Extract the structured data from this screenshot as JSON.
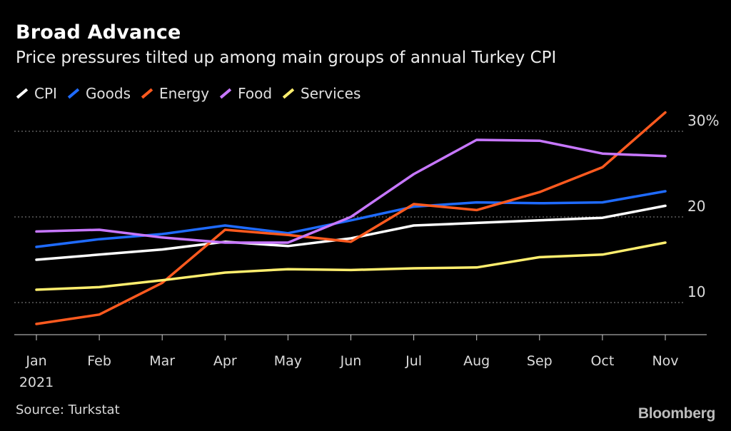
{
  "header": {
    "title": "Broad Advance",
    "subtitle": "Price pressures tilted up among main groups of annual Turkey CPI"
  },
  "footer": {
    "source": "Source: Turkstat",
    "brand": "Bloomberg"
  },
  "chart_data": {
    "type": "line",
    "categories": [
      "Jan",
      "Feb",
      "Mar",
      "Apr",
      "May",
      "Jun",
      "Jul",
      "Aug",
      "Sep",
      "Oct",
      "Nov"
    ],
    "year_label": "2021",
    "ylim": [
      6.5,
      32.5
    ],
    "yticks": [
      10,
      20,
      30
    ],
    "ytick_labels": [
      "10",
      "20",
      "30%"
    ],
    "grid": "horizontal dotted",
    "legend": "top-left",
    "series": [
      {
        "name": "CPI",
        "color": "#ffffff",
        "values": [
          15.0,
          15.6,
          16.2,
          17.1,
          16.6,
          17.5,
          19.0,
          19.3,
          19.6,
          19.9,
          21.3
        ]
      },
      {
        "name": "Goods",
        "color": "#1f6bff",
        "values": [
          16.5,
          17.4,
          18.0,
          19.0,
          18.1,
          19.6,
          21.2,
          21.7,
          21.6,
          21.7,
          23.0
        ]
      },
      {
        "name": "Energy",
        "color": "#ff5a1f",
        "values": [
          7.5,
          8.6,
          12.3,
          18.5,
          17.9,
          17.1,
          21.5,
          20.8,
          22.9,
          25.8,
          32.2
        ]
      },
      {
        "name": "Food",
        "color": "#c777ff",
        "values": [
          18.3,
          18.5,
          17.6,
          17.0,
          17.0,
          20.0,
          25.0,
          29.0,
          28.9,
          27.4,
          27.1
        ]
      },
      {
        "name": "Services",
        "color": "#ffee6e",
        "values": [
          11.5,
          11.8,
          12.6,
          13.5,
          13.9,
          13.8,
          14.0,
          14.1,
          15.3,
          15.6,
          17.0
        ]
      }
    ]
  }
}
